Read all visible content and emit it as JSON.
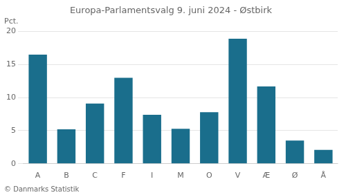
{
  "chart_data": {
    "type": "bar",
    "title": "Europa-Parlamentsvalg 9. juni 2024 - Østbirk",
    "ylabel": "Pct.",
    "footer": "© Danmarks Statistik",
    "categories": [
      "A",
      "B",
      "C",
      "F",
      "I",
      "M",
      "O",
      "V",
      "Æ",
      "Ø",
      "Å"
    ],
    "values": [
      16.5,
      5.2,
      9.1,
      13.0,
      7.4,
      5.3,
      7.8,
      18.9,
      11.7,
      3.5,
      2.1
    ],
    "color": "#1a6e8c",
    "ylim": [
      0,
      20
    ],
    "yticks": [
      0,
      5,
      10,
      15,
      20
    ],
    "grid": true
  }
}
